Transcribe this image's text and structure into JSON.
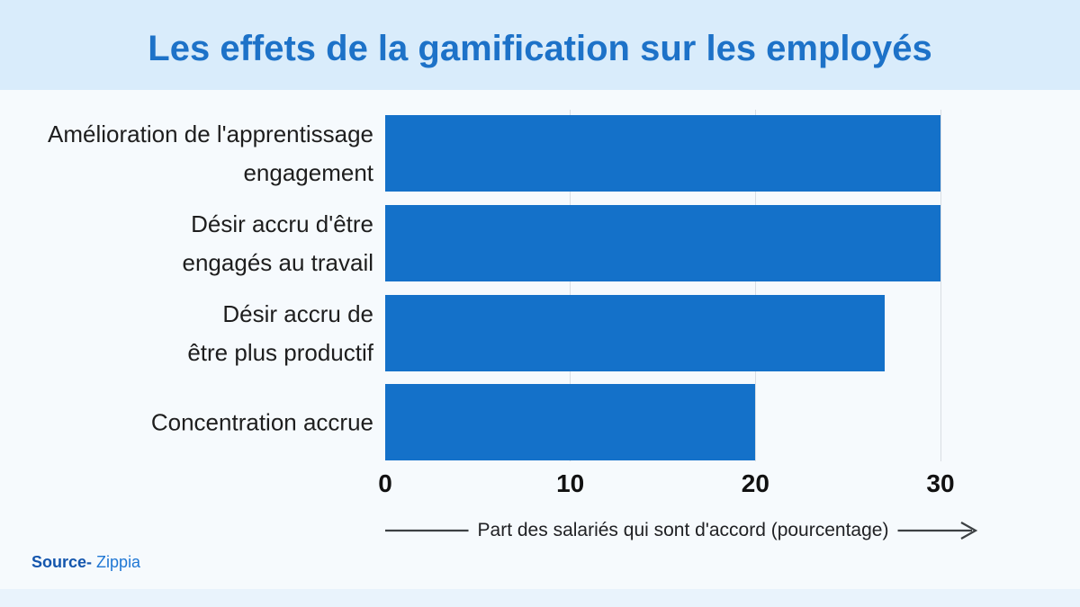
{
  "title": "Les effets de la gamification sur les employés",
  "source": {
    "prefix": "Source-",
    "name": "Zippia"
  },
  "colors": {
    "page_bg": "#f6fafd",
    "band_bg": "#d9ecfb",
    "title": "#1d72c8",
    "bar": "#1471c9",
    "grid": "#d8dde3",
    "arrow": "#3c4043",
    "source_prefix": "#1456ad",
    "source_link": "#1f77d4",
    "bottom_band_bg": "#e9f3fc"
  },
  "chart_data": {
    "type": "bar",
    "orientation": "horizontal",
    "title": "Les effets de la gamification sur les employés",
    "categories": [
      "Amélioration de l'apprentissage engagement",
      "Désir accru d'être engagés au travail",
      "Désir accru de être plus productif",
      "Concentration accrue"
    ],
    "category_lines": [
      [
        "Amélioration de l'apprentissage",
        "engagement"
      ],
      [
        "Désir accru d'être",
        "engagés au travail"
      ],
      [
        "Désir accru de",
        "être plus productif"
      ],
      [
        "Concentration accrue"
      ]
    ],
    "values": [
      30,
      30,
      27,
      20
    ],
    "xlabel": "Part des salariés qui sont d'accord (pourcentage)",
    "xticks": [
      0,
      10,
      20,
      30
    ],
    "xlim": [
      0,
      31
    ],
    "grid": "vertical-gridlines-at-ticks",
    "legend": "none"
  }
}
